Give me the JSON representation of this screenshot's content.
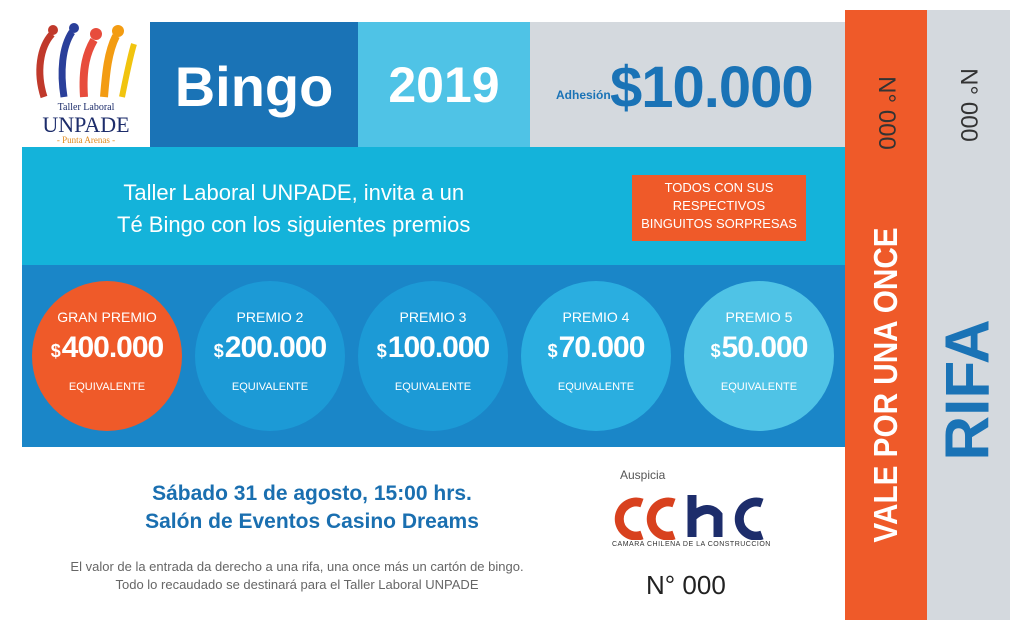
{
  "logo": {
    "line1": "Taller Laboral",
    "line2": "UNPADE",
    "line3": "- Punta Arenas -"
  },
  "header": {
    "title": "Bingo",
    "year": "2019",
    "fee_label": "Adhesión",
    "fee": "$10.000"
  },
  "invite": {
    "lines": [
      "Taller Laboral UNPADE, invita a un",
      "Té Bingo con los siguientes premios"
    ],
    "note": [
      "TODOS CON SUS",
      "RESPECTIVOS",
      "BINGUITOS SORPRESAS"
    ]
  },
  "prizes": [
    {
      "name": "GRAN PREMIO",
      "currency": "$",
      "amount": "400.000",
      "note": "EQUIVALENTE"
    },
    {
      "name": "PREMIO 2",
      "currency": "$",
      "amount": "200.000",
      "note": "EQUIVALENTE"
    },
    {
      "name": "PREMIO 3",
      "currency": "$",
      "amount": "100.000",
      "note": "EQUIVALENTE"
    },
    {
      "name": "PREMIO 4",
      "currency": "$",
      "amount": "70.000",
      "note": "EQUIVALENTE"
    },
    {
      "name": "PREMIO 5",
      "currency": "$",
      "amount": "50.000",
      "note": "EQUIVALENTE"
    }
  ],
  "event": {
    "date": "Sábado 31 de agosto, 15:00 hrs.",
    "venue": "Salón de Eventos Casino Dreams",
    "fine_print": [
      "El valor de la entrada da derecho a una rifa, una once más un cartón de bingo.",
      "Todo lo recaudado se destinará para el Taller Laboral UNPADE"
    ]
  },
  "sponsor": {
    "label": "Auspicia",
    "name": "CAMARA CHILENA DE LA CONSTRUCCION"
  },
  "ticket_number": "N° 000",
  "stub": {
    "title": "VALE POR UNA ONCE",
    "number": "N° 000"
  },
  "raffle": {
    "title": "RIFA",
    "number": "N° 000"
  }
}
